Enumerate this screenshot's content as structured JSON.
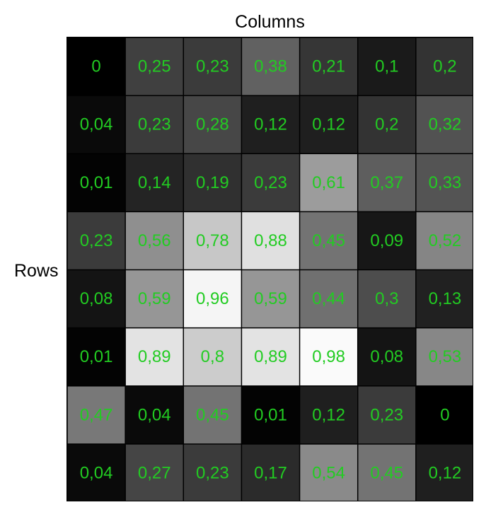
{
  "chart_data": {
    "type": "heatmap",
    "xlabel": "Columns",
    "ylabel": "Rows",
    "label_color": "#22cc22",
    "value_range": [
      0,
      1
    ],
    "colormap": "grayscale (0 = black, 1 = white)",
    "values": [
      [
        "0",
        "0,25",
        "0,23",
        "0,38",
        "0,21",
        "0,1",
        "0,2"
      ],
      [
        "0,04",
        "0,23",
        "0,28",
        "0,12",
        "0,12",
        "0,2",
        "0,32"
      ],
      [
        "0,01",
        "0,14",
        "0,19",
        "0,23",
        "0,61",
        "0,37",
        "0,33"
      ],
      [
        "0,23",
        "0,56",
        "0,78",
        "0,88",
        "0,45",
        "0,09",
        "0,52"
      ],
      [
        "0,08",
        "0,59",
        "0,96",
        "0,59",
        "0,44",
        "0,3",
        "0,13"
      ],
      [
        "0,01",
        "0,89",
        "0,8",
        "0,89",
        "0,98",
        "0,08",
        "0,53"
      ],
      [
        "0,47",
        "0,04",
        "0,45",
        "0,01",
        "0,12",
        "0,23",
        "0"
      ],
      [
        "0,04",
        "0,27",
        "0,23",
        "0,17",
        "0,54",
        "0,45",
        "0,12"
      ]
    ]
  }
}
